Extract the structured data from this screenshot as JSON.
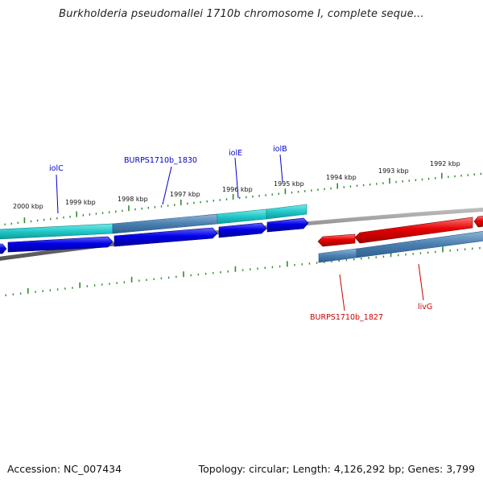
{
  "title": "Burkholderia pseudomallei 1710b chromosome I, complete seque...",
  "footer": {
    "accession": "Accession: NC_007434",
    "summary": "Topology: circular; Length: 4,126,292 bp; Genes: 3,799"
  },
  "colors": {
    "tick": "#2e8b2e",
    "backbone": "#8a8a8a",
    "cds_forward": "#0000e6",
    "gene_forward": "#20c8c8",
    "gene_forward_alt": "#4a86b8",
    "cds_reverse": "#e60000",
    "gene_reverse": "#4a7fb8",
    "label_forward": "#0000cc",
    "label_reverse": "#cc0000"
  },
  "scale_labels": [
    "2000 kbp",
    "1999 kbp",
    "1998 kbp",
    "1997 kbp",
    "1996 kbp",
    "1995 kbp",
    "1994 kbp",
    "1993 kbp",
    "1992 kbp"
  ],
  "gene_labels": {
    "forward": [
      "iolC",
      "BURPS1710b_1830",
      "iolE",
      "iolB"
    ],
    "reverse": [
      "BURPS1710b_1827",
      "livG"
    ]
  }
}
